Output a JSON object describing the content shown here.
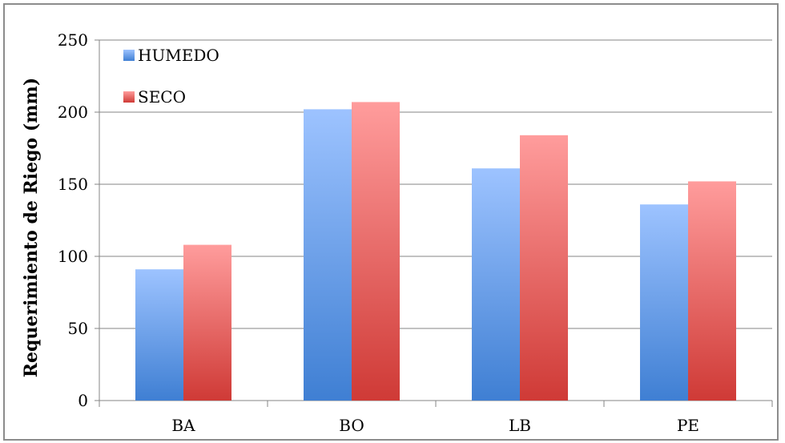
{
  "chart_data": {
    "type": "bar",
    "categories": [
      "BA",
      "BO",
      "LB",
      "PE"
    ],
    "series": [
      {
        "name": "HUMEDO",
        "values": [
          91,
          202,
          161,
          136
        ]
      },
      {
        "name": "SECO",
        "values": [
          108,
          207,
          184,
          152
        ]
      }
    ],
    "title": "",
    "xlabel": "",
    "ylabel": "Requerimiento de Riego (mm)",
    "ylim": [
      0,
      250
    ],
    "yticks": [
      "0",
      "50",
      "100",
      "150",
      "200",
      "250"
    ],
    "grid": true,
    "legend_position": "top-left",
    "colors": {
      "HUMEDO_top": "#9dc3ff",
      "HUMEDO_bottom": "#3f7fd3",
      "SECO_top": "#ff9c9c",
      "SECO_bottom": "#cf3a36",
      "grid": "#868686"
    }
  }
}
